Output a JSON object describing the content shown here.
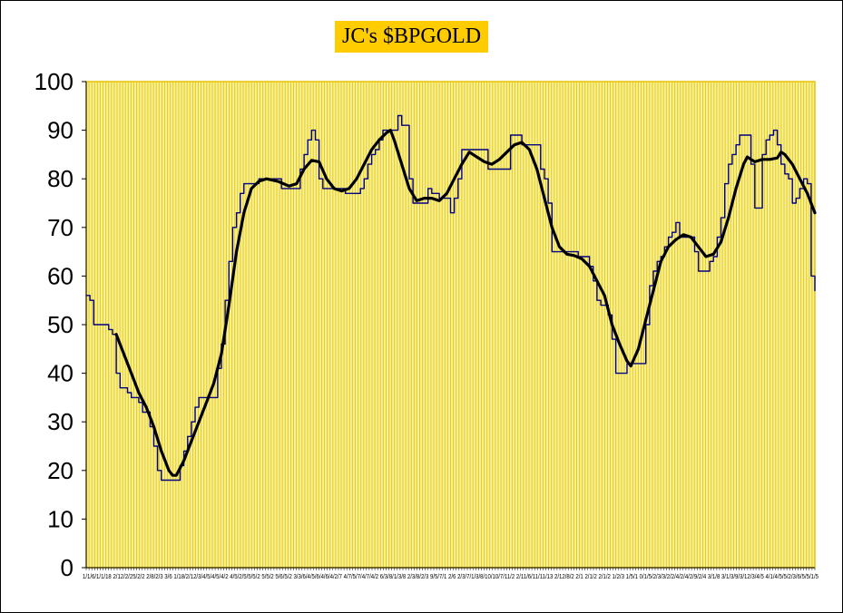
{
  "chart_data": {
    "type": "line",
    "title": "JC's $BPGOLD",
    "xlabel": "",
    "ylabel": "",
    "ylim": [
      0,
      100
    ],
    "yticks": [
      0,
      10,
      20,
      30,
      40,
      50,
      60,
      70,
      80,
      90,
      100
    ],
    "x_tick_text": "1/1/6/1/1/18 2/12/2/25/2/2 2/8/2/3 3/6 1/18/2/12/3/4/5/4/5/4/2 4/5/2/5/5/5/2 5/5/2 5/6/5/2 3/3/6/4/5/6/4/6/4/2/7 4/7/5/7/4/7/4/2 6/3/8/1/3/8 2/3/8/2/3 9/5/7/1 2/6 2/3/7/1/3/8/10/10/7/11/2 2/11/6/11/11/13 2/12/8/2 2/1 2/1/2 2/1/2 1/2/3 1/5/1 0/1/5/2/3/3/2/2/4/2/4/2/9/2/4 3/1/8 3/1/3/9/3/12/3/4/5 4/1/4/5/5/2/3/6/5/5/1/5",
    "grid": "vertical",
    "background": "#F6F09A",
    "grid_color": "#E8C400",
    "plot_border_color": "#E8C400",
    "title_bg": "#FFCC00",
    "series": [
      {
        "role": "raw",
        "color": "#000080",
        "points": [
          [
            0,
            56
          ],
          [
            1,
            55
          ],
          [
            2,
            50
          ],
          [
            5,
            50
          ],
          [
            6,
            49
          ],
          [
            7,
            48
          ],
          [
            8,
            40
          ],
          [
            9,
            37
          ],
          [
            10,
            37
          ],
          [
            11,
            36
          ],
          [
            12,
            35
          ],
          [
            13,
            35
          ],
          [
            14,
            34
          ],
          [
            15,
            32
          ],
          [
            16,
            32
          ],
          [
            17,
            29
          ],
          [
            18,
            25
          ],
          [
            19,
            20
          ],
          [
            20,
            18
          ],
          [
            24,
            18
          ],
          [
            25,
            21
          ],
          [
            26,
            24
          ],
          [
            27,
            27
          ],
          [
            28,
            30
          ],
          [
            29,
            33
          ],
          [
            30,
            35
          ],
          [
            34,
            35
          ],
          [
            35,
            41
          ],
          [
            36,
            46
          ],
          [
            37,
            55
          ],
          [
            38,
            63
          ],
          [
            39,
            70
          ],
          [
            40,
            73
          ],
          [
            41,
            77
          ],
          [
            42,
            79
          ],
          [
            45,
            79
          ],
          [
            46,
            80
          ],
          [
            51,
            80
          ],
          [
            52,
            78
          ],
          [
            56,
            78
          ],
          [
            57,
            82
          ],
          [
            58,
            85
          ],
          [
            59,
            88
          ],
          [
            60,
            90
          ],
          [
            61,
            88
          ],
          [
            62,
            80
          ],
          [
            63,
            78
          ],
          [
            68,
            78
          ],
          [
            69,
            77
          ],
          [
            72,
            77
          ],
          [
            73,
            78
          ],
          [
            74,
            80
          ],
          [
            75,
            83
          ],
          [
            76,
            85
          ],
          [
            77,
            86
          ],
          [
            78,
            88
          ],
          [
            79,
            90
          ],
          [
            82,
            90
          ],
          [
            83,
            93
          ],
          [
            84,
            91
          ],
          [
            85,
            91
          ],
          [
            86,
            80
          ],
          [
            87,
            75
          ],
          [
            90,
            75
          ],
          [
            91,
            78
          ],
          [
            92,
            77
          ],
          [
            94,
            76
          ],
          [
            96,
            76
          ],
          [
            97,
            73
          ],
          [
            98,
            76
          ],
          [
            99,
            80
          ],
          [
            100,
            86
          ],
          [
            106,
            86
          ],
          [
            107,
            82
          ],
          [
            112,
            82
          ],
          [
            113,
            89
          ],
          [
            115,
            89
          ],
          [
            116,
            87
          ],
          [
            120,
            87
          ],
          [
            121,
            82
          ],
          [
            122,
            80
          ],
          [
            123,
            75
          ],
          [
            124,
            65
          ],
          [
            130,
            65
          ],
          [
            131,
            64
          ],
          [
            133,
            64
          ],
          [
            134,
            62
          ],
          [
            135,
            59
          ],
          [
            136,
            55
          ],
          [
            137,
            54
          ],
          [
            138,
            54
          ],
          [
            139,
            52
          ],
          [
            140,
            47
          ],
          [
            141,
            40
          ],
          [
            143,
            40
          ],
          [
            144,
            42
          ],
          [
            148,
            42
          ],
          [
            149,
            50
          ],
          [
            150,
            58
          ],
          [
            151,
            61
          ],
          [
            152,
            63
          ],
          [
            153,
            64
          ],
          [
            154,
            66
          ],
          [
            155,
            68
          ],
          [
            156,
            69
          ],
          [
            157,
            71
          ],
          [
            158,
            68
          ],
          [
            161,
            68
          ],
          [
            162,
            65
          ],
          [
            163,
            61
          ],
          [
            165,
            61
          ],
          [
            166,
            63
          ],
          [
            167,
            64
          ],
          [
            168,
            68
          ],
          [
            169,
            72
          ],
          [
            170,
            79
          ],
          [
            171,
            83
          ],
          [
            172,
            85
          ],
          [
            173,
            87
          ],
          [
            174,
            89
          ],
          [
            176,
            89
          ],
          [
            177,
            83
          ],
          [
            178,
            74
          ],
          [
            179,
            74
          ],
          [
            180,
            85
          ],
          [
            181,
            88
          ],
          [
            182,
            89
          ],
          [
            183,
            90
          ],
          [
            184,
            87
          ],
          [
            185,
            83
          ],
          [
            186,
            81
          ],
          [
            187,
            80
          ],
          [
            188,
            75
          ],
          [
            189,
            76
          ],
          [
            190,
            78
          ],
          [
            191,
            80
          ],
          [
            192,
            79
          ],
          [
            193,
            60
          ],
          [
            194,
            57
          ]
        ]
      },
      {
        "role": "smoothed",
        "color": "#000000",
        "points": [
          [
            8,
            48
          ],
          [
            10,
            44
          ],
          [
            12,
            40
          ],
          [
            14,
            36
          ],
          [
            16,
            33
          ],
          [
            18,
            29
          ],
          [
            20,
            24
          ],
          [
            22,
            20
          ],
          [
            23,
            19
          ],
          [
            24,
            19
          ],
          [
            26,
            22
          ],
          [
            28,
            26
          ],
          [
            30,
            30
          ],
          [
            32,
            34
          ],
          [
            34,
            38
          ],
          [
            36,
            44
          ],
          [
            38,
            54
          ],
          [
            40,
            65
          ],
          [
            42,
            73
          ],
          [
            44,
            78
          ],
          [
            46,
            79.5
          ],
          [
            48,
            80
          ],
          [
            51,
            79.5
          ],
          [
            54,
            78.5
          ],
          [
            56,
            79
          ],
          [
            58,
            82
          ],
          [
            60,
            83.8
          ],
          [
            62,
            83.5
          ],
          [
            64,
            80
          ],
          [
            66,
            78
          ],
          [
            68,
            77.5
          ],
          [
            70,
            78
          ],
          [
            72,
            80
          ],
          [
            74,
            83
          ],
          [
            76,
            86
          ],
          [
            78,
            88
          ],
          [
            80,
            89.5
          ],
          [
            81,
            90
          ],
          [
            82,
            88
          ],
          [
            84,
            83
          ],
          [
            86,
            78
          ],
          [
            88,
            75.5
          ],
          [
            90,
            76
          ],
          [
            92,
            76
          ],
          [
            94,
            75.5
          ],
          [
            96,
            77
          ],
          [
            98,
            80
          ],
          [
            100,
            83
          ],
          [
            102,
            85.5
          ],
          [
            104,
            84.5
          ],
          [
            106,
            83.5
          ],
          [
            108,
            83
          ],
          [
            110,
            84
          ],
          [
            112,
            85.5
          ],
          [
            114,
            87
          ],
          [
            116,
            87.5
          ],
          [
            118,
            86
          ],
          [
            120,
            82
          ],
          [
            122,
            76
          ],
          [
            124,
            70
          ],
          [
            126,
            66
          ],
          [
            128,
            64.5
          ],
          [
            130,
            64.2
          ],
          [
            132,
            63.5
          ],
          [
            134,
            62
          ],
          [
            136,
            59
          ],
          [
            138,
            56
          ],
          [
            140,
            50
          ],
          [
            142,
            46
          ],
          [
            144,
            42.5
          ],
          [
            145,
            41.5
          ],
          [
            147,
            45
          ],
          [
            149,
            51
          ],
          [
            151,
            57
          ],
          [
            153,
            63
          ],
          [
            155,
            66
          ],
          [
            157,
            67.5
          ],
          [
            159,
            68.5
          ],
          [
            161,
            68
          ],
          [
            163,
            66
          ],
          [
            165,
            64
          ],
          [
            167,
            64.5
          ],
          [
            169,
            67
          ],
          [
            171,
            72
          ],
          [
            173,
            78
          ],
          [
            175,
            83
          ],
          [
            176,
            84.5
          ],
          [
            177,
            84
          ],
          [
            178,
            83.5
          ],
          [
            180,
            84
          ],
          [
            182,
            84
          ],
          [
            184,
            84.3
          ],
          [
            185,
            85.5
          ],
          [
            186,
            85
          ],
          [
            188,
            83
          ],
          [
            190,
            80
          ],
          [
            192,
            77
          ],
          [
            194,
            73
          ]
        ]
      }
    ]
  }
}
